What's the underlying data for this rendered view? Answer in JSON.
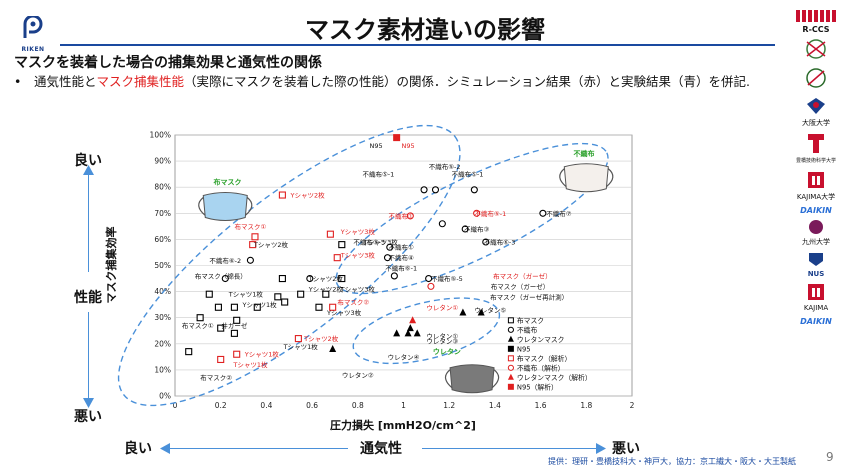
{
  "header": {
    "riken_text": "RIKEN",
    "title": "マスク素材違いの影響",
    "subtitle": "マスクを装着した場合の捕集効果と通気性の関係",
    "bullet_pre": "通気性能と",
    "bullet_red": "マスク捕集性能",
    "bullet_post": "（実際にマスクを装着した際の性能）の関係．シミュレーション結果（赤）と実験結果（青）を併記."
  },
  "logos": [
    "R-CCS",
    "RIKEN",
    "大阪大学",
    "豊橋技術科学大学",
    "KAJIMA大学",
    "DAIKIN",
    "九州大学",
    "NUS",
    "KAJIMA",
    "DAIKIN"
  ],
  "y_scale_words": {
    "top": "良い",
    "middle": "性能",
    "bottom": "悪い"
  },
  "x_scale_words": {
    "left": "良い",
    "middle": "通気性",
    "right": "悪い"
  },
  "footer": "提供：理研・豊橋技科大・神戸大，協力：京工繊大・阪大・大王製紙",
  "page_number": "9",
  "colors": {
    "red": "#e02020",
    "blue_accent": "#1a4aa0",
    "dashed": "#4a90d9",
    "green": "#2aa02a"
  },
  "chart_data": {
    "type": "scatter",
    "xlabel": "圧力損失 [mmH2O/cm^2]",
    "ylabel": "マスク捕集効率",
    "xlim": [
      0,
      2
    ],
    "ylim": [
      0,
      100
    ],
    "x_ticks": [
      "0",
      "0.2",
      "0.4",
      "0.6",
      "0.8",
      "1",
      "1.2",
      "1.4",
      "1.6",
      "1.8",
      "2"
    ],
    "y_ticks": [
      "0%",
      "10%",
      "20%",
      "30%",
      "40%",
      "50%",
      "60%",
      "70%",
      "80%",
      "90%",
      "100%"
    ],
    "legend": [
      {
        "label": "布マスク",
        "marker": "square-open",
        "color": "#000"
      },
      {
        "label": "不織布",
        "marker": "circle-open",
        "color": "#000"
      },
      {
        "label": "ウレタンマスク",
        "marker": "triangle",
        "color": "#000"
      },
      {
        "label": "N95",
        "marker": "square",
        "color": "#000"
      },
      {
        "label": "布マスク（解析）",
        "marker": "square-open",
        "color": "#e02020"
      },
      {
        "label": "不織布（解析）",
        "marker": "circle-open",
        "color": "#e02020"
      },
      {
        "label": "ウレタンマスク（解析）",
        "marker": "triangle",
        "color": "#e02020"
      },
      {
        "label": "N95（解析）",
        "marker": "square",
        "color": "#e02020"
      }
    ],
    "points": [
      {
        "x": 0.97,
        "y": 99,
        "m": "square",
        "c": "#e02020"
      },
      {
        "x": 1.09,
        "y": 79,
        "m": "circle-open",
        "c": "#000"
      },
      {
        "x": 1.14,
        "y": 79,
        "m": "circle-open",
        "c": "#000"
      },
      {
        "x": 1.31,
        "y": 79,
        "m": "circle-open",
        "c": "#000"
      },
      {
        "x": 1.32,
        "y": 70,
        "m": "circle-open",
        "c": "#e02020"
      },
      {
        "x": 1.03,
        "y": 69,
        "m": "circle-open",
        "c": "#e02020"
      },
      {
        "x": 1.17,
        "y": 66,
        "m": "circle-open",
        "c": "#000"
      },
      {
        "x": 1.27,
        "y": 64,
        "m": "circle-open",
        "c": "#000"
      },
      {
        "x": 1.61,
        "y": 70,
        "m": "circle-open",
        "c": "#000"
      },
      {
        "x": 1.36,
        "y": 59,
        "m": "circle-open",
        "c": "#000"
      },
      {
        "x": 0.94,
        "y": 57,
        "m": "circle-open",
        "c": "#000"
      },
      {
        "x": 0.93,
        "y": 53,
        "m": "circle-open",
        "c": "#000"
      },
      {
        "x": 0.33,
        "y": 52,
        "m": "circle-open",
        "c": "#000"
      },
      {
        "x": 0.96,
        "y": 46,
        "m": "circle-open",
        "c": "#000"
      },
      {
        "x": 1.11,
        "y": 45,
        "m": "circle-open",
        "c": "#000"
      },
      {
        "x": 1.12,
        "y": 42,
        "m": "circle-open",
        "c": "#e02020"
      },
      {
        "x": 0.47,
        "y": 77,
        "m": "square-open",
        "c": "#e02020"
      },
      {
        "x": 0.35,
        "y": 61,
        "m": "square-open",
        "c": "#e02020"
      },
      {
        "x": 0.34,
        "y": 58,
        "m": "square-open",
        "c": "#e02020"
      },
      {
        "x": 0.68,
        "y": 62,
        "m": "square-open",
        "c": "#e02020"
      },
      {
        "x": 0.73,
        "y": 58,
        "m": "square-open",
        "c": "#000"
      },
      {
        "x": 0.71,
        "y": 53,
        "m": "square-open",
        "c": "#e02020"
      },
      {
        "x": 0.47,
        "y": 45,
        "m": "square-open",
        "c": "#000"
      },
      {
        "x": 0.59,
        "y": 45,
        "m": "circle-open",
        "c": "#000"
      },
      {
        "x": 0.73,
        "y": 45,
        "m": "square-open",
        "c": "#000"
      },
      {
        "x": 0.22,
        "y": 45,
        "m": "circle-open",
        "c": "#000"
      },
      {
        "x": 0.15,
        "y": 39,
        "m": "square-open",
        "c": "#000"
      },
      {
        "x": 0.55,
        "y": 39,
        "m": "square-open",
        "c": "#000"
      },
      {
        "x": 0.66,
        "y": 39,
        "m": "square-open",
        "c": "#000"
      },
      {
        "x": 0.45,
        "y": 38,
        "m": "square-open",
        "c": "#000"
      },
      {
        "x": 0.48,
        "y": 36,
        "m": "square-open",
        "c": "#000"
      },
      {
        "x": 0.19,
        "y": 34,
        "m": "square-open",
        "c": "#000"
      },
      {
        "x": 0.26,
        "y": 34,
        "m": "square-open",
        "c": "#000"
      },
      {
        "x": 0.36,
        "y": 34,
        "m": "square-open",
        "c": "#000"
      },
      {
        "x": 0.69,
        "y": 34,
        "m": "square-open",
        "c": "#e02020"
      },
      {
        "x": 0.63,
        "y": 34,
        "m": "square-open",
        "c": "#000"
      },
      {
        "x": 0.11,
        "y": 30,
        "m": "square-open",
        "c": "#000"
      },
      {
        "x": 0.27,
        "y": 29,
        "m": "square-open",
        "c": "#000"
      },
      {
        "x": 0.2,
        "y": 26,
        "m": "square-open",
        "c": "#000"
      },
      {
        "x": 0.26,
        "y": 24,
        "m": "square-open",
        "c": "#000"
      },
      {
        "x": 0.54,
        "y": 22,
        "m": "square-open",
        "c": "#e02020"
      },
      {
        "x": 0.06,
        "y": 17,
        "m": "square-open",
        "c": "#000"
      },
      {
        "x": 0.2,
        "y": 14,
        "m": "square-open",
        "c": "#e02020"
      },
      {
        "x": 0.27,
        "y": 16,
        "m": "square-open",
        "c": "#e02020"
      },
      {
        "x": 1.04,
        "y": 29,
        "m": "triangle",
        "c": "#e02020"
      },
      {
        "x": 1.03,
        "y": 26,
        "m": "triangle",
        "c": "#000"
      },
      {
        "x": 0.97,
        "y": 24,
        "m": "triangle",
        "c": "#000"
      },
      {
        "x": 1.02,
        "y": 24,
        "m": "triangle",
        "c": "#000"
      },
      {
        "x": 1.06,
        "y": 24,
        "m": "triangle",
        "c": "#000"
      },
      {
        "x": 1.26,
        "y": 32,
        "m": "triangle",
        "c": "#000"
      },
      {
        "x": 1.34,
        "y": 32,
        "m": "triangle",
        "c": "#000"
      },
      {
        "x": 0.69,
        "y": 18,
        "m": "triangle",
        "c": "#000"
      }
    ],
    "labels": [
      {
        "t": "N95",
        "x": 0.88,
        "y": 96,
        "c": "#111"
      },
      {
        "t": "N95",
        "x": 1.02,
        "y": 96,
        "c": "#e02020"
      },
      {
        "t": "不織布⑤-2",
        "x": 1.18,
        "y": 88,
        "c": "#111"
      },
      {
        "t": "不織布⑤-1",
        "x": 1.28,
        "y": 85,
        "c": "#111"
      },
      {
        "t": "不織布⑤-1",
        "x": 0.89,
        "y": 85,
        "c": "#111"
      },
      {
        "t": "不織布①",
        "x": 0.99,
        "y": 69,
        "c": "#e02020"
      },
      {
        "t": "不織布⑤-1",
        "x": 1.38,
        "y": 70,
        "c": "#e02020"
      },
      {
        "t": "不織布⑦",
        "x": 1.68,
        "y": 70,
        "c": "#111"
      },
      {
        "t": "不織布③",
        "x": 1.32,
        "y": 64,
        "c": "#111"
      },
      {
        "t": "不織布⑥-3",
        "x": 1.42,
        "y": 59,
        "c": "#111"
      },
      {
        "t": "不織布⑤-3",
        "x": 0.85,
        "y": 59,
        "c": "#111"
      },
      {
        "t": "不織布①",
        "x": 0.99,
        "y": 57,
        "c": "#111"
      },
      {
        "t": "不織布④",
        "x": 0.99,
        "y": 53,
        "c": "#111"
      },
      {
        "t": "不織布⑥-2",
        "x": 0.22,
        "y": 52,
        "c": "#111"
      },
      {
        "t": "不織布⑥-1",
        "x": 0.99,
        "y": 49,
        "c": "#111"
      },
      {
        "t": "不織布⑤-5",
        "x": 1.19,
        "y": 45,
        "c": "#111"
      },
      {
        "t": "Yシャツ2枚",
        "x": 0.58,
        "y": 77,
        "c": "#e02020"
      },
      {
        "t": "布マスク①",
        "x": 0.33,
        "y": 65,
        "c": "#e02020"
      },
      {
        "t": "Yシャツ3枚",
        "x": 0.8,
        "y": 63,
        "c": "#e02020"
      },
      {
        "t": "Tシャツ2枚",
        "x": 0.42,
        "y": 58,
        "c": "#111"
      },
      {
        "t": "Tシャツ3枚",
        "x": 0.9,
        "y": 59,
        "c": "#111"
      },
      {
        "t": "Tシャツ3枚",
        "x": 0.8,
        "y": 54,
        "c": "#e02020"
      },
      {
        "t": "布マスク（ガーゼ）",
        "x": 1.52,
        "y": 46,
        "c": "#e02020"
      },
      {
        "t": "布マスク（ガーゼ）",
        "x": 1.51,
        "y": 42,
        "c": "#111"
      },
      {
        "t": "布マスク（ガーゼ再計測）",
        "x": 1.55,
        "y": 38,
        "c": "#111"
      },
      {
        "t": "布マスク（綿長）",
        "x": 0.2,
        "y": 46,
        "c": "#111"
      },
      {
        "t": "Tシャツ2枚",
        "x": 0.66,
        "y": 45,
        "c": "#111"
      },
      {
        "t": "Tシャツ3枚",
        "x": 0.8,
        "y": 41,
        "c": "#111"
      },
      {
        "t": "Yシャツ2枚",
        "x": 0.66,
        "y": 41,
        "c": "#111"
      },
      {
        "t": "Tシャツ1枚",
        "x": 0.31,
        "y": 39,
        "c": "#111"
      },
      {
        "t": "Yシャツ1枚",
        "x": 0.37,
        "y": 35,
        "c": "#111"
      },
      {
        "t": "布マスク②",
        "x": 0.78,
        "y": 36,
        "c": "#e02020"
      },
      {
        "t": "Yシャツ3枚",
        "x": 0.74,
        "y": 32,
        "c": "#111"
      },
      {
        "t": "ウレタン①",
        "x": 1.17,
        "y": 34,
        "c": "#e02020"
      },
      {
        "t": "ウレタン⑤",
        "x": 1.38,
        "y": 33,
        "c": "#111"
      },
      {
        "t": "布マスク①",
        "x": 0.1,
        "y": 27,
        "c": "#111"
      },
      {
        "t": "井ガーゼ",
        "x": 0.26,
        "y": 27,
        "c": "#111"
      },
      {
        "t": "ウレタン①",
        "x": 1.17,
        "y": 23,
        "c": "#111"
      },
      {
        "t": "ウレタン③",
        "x": 1.17,
        "y": 21,
        "c": "#111"
      },
      {
        "t": "Tシャツ2枚",
        "x": 0.64,
        "y": 22,
        "c": "#e02020"
      },
      {
        "t": "ウレタン④",
        "x": 1.0,
        "y": 15,
        "c": "#111"
      },
      {
        "t": "Tシャツ1枚",
        "x": 0.55,
        "y": 19,
        "c": "#111"
      },
      {
        "t": "Yシャツ1枚",
        "x": 0.38,
        "y": 16,
        "c": "#e02020"
      },
      {
        "t": "Tシャツ1枚",
        "x": 0.33,
        "y": 12,
        "c": "#e02020"
      },
      {
        "t": "布マスク②",
        "x": 0.18,
        "y": 7,
        "c": "#111"
      },
      {
        "t": "ウレタン②",
        "x": 0.8,
        "y": 8,
        "c": "#111"
      }
    ],
    "region_labels": [
      {
        "t": "布マスク",
        "x": 0.23,
        "y": 82,
        "c": "#2aa02a"
      },
      {
        "t": "不織布",
        "x": 1.79,
        "y": 93,
        "c": "#2aa02a"
      },
      {
        "t": "ウレタン",
        "x": 1.19,
        "y": 17,
        "c": "#2aa02a"
      }
    ]
  }
}
